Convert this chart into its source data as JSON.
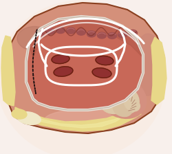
{
  "fig_bg": "#f8f0ec",
  "outer_tissue_color": "#d4907a",
  "outer_tissue_light": "#e0a090",
  "outer_border_color": "#8a4020",
  "inner_cavity_color": "#c86858",
  "inner_cavity_dark": "#b05848",
  "fat_yellow": "#e8d888",
  "fat_light": "#f0e8a0",
  "fat_cream": "#f0e8c8",
  "laa_base": "#d49080",
  "laa_mid": "#c8806c",
  "laa_dark": "#b07060",
  "laa_cream": "#ddc8a8",
  "white_line": "#ffffff",
  "white_line_alpha": 0.95,
  "suture_dark": "#1a1010",
  "pv_dark": "#903030",
  "pv_rim": "#6a2010",
  "mitral_ridge": "#a05050",
  "mitral_scallop": "#b86868",
  "right_tissue": "#cc8878",
  "ablation_lw": 2.2
}
